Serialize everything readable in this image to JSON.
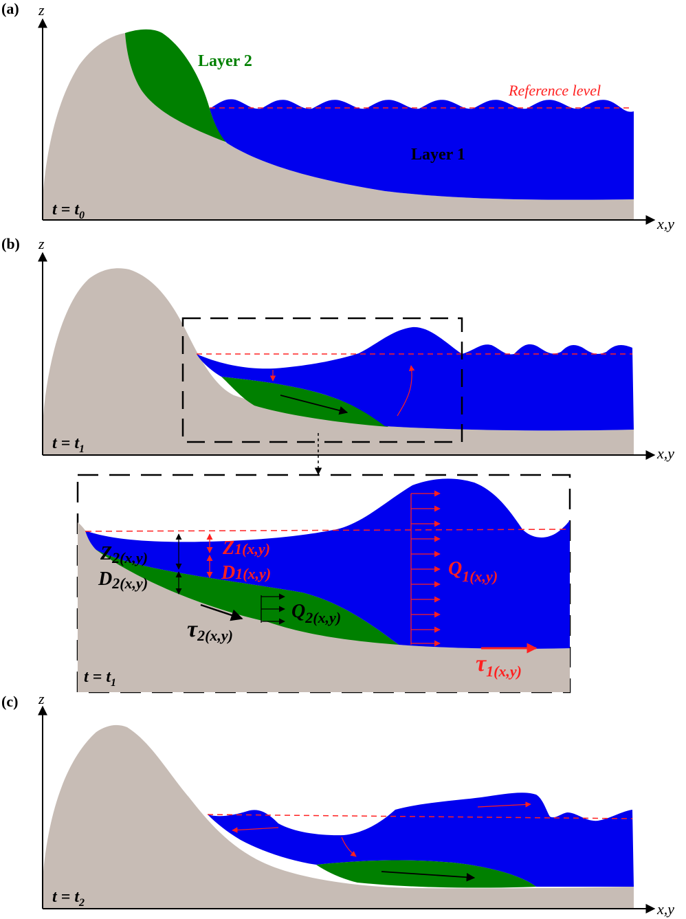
{
  "colors": {
    "ground": "#c7bcb5",
    "layer1": "#0000ee",
    "layer2": "#008000",
    "annotation_red": "#ff2020",
    "annotation_black": "#000000"
  },
  "axes": {
    "z_label": "z",
    "x_label": "x,y"
  },
  "panel_a": {
    "label": "(a)",
    "time_t": "t = t",
    "time_sub": "0",
    "layer2_label": "Layer 2",
    "layer1_label": "Layer 1",
    "reference_label": "Reference level"
  },
  "panel_b": {
    "label": "(b)",
    "time_t": "t = t",
    "time_sub": "1"
  },
  "panel_zoom": {
    "time_t": "t = t",
    "time_sub": "1",
    "Z2_main": "Z",
    "Z2_sub": "2(x,y)",
    "D2_main": "D",
    "D2_sub": "2(x,y)",
    "Z1_main": "Z",
    "Z1_sub": "1(x,y)",
    "D1_main": "D",
    "D1_sub": "1(x,y)",
    "Q1_main": "Q",
    "Q1_sub": "1(x,y)",
    "Q2_main": "Q",
    "Q2_sub": "2(x,y)",
    "tau2_main": "τ",
    "tau2_sub": "2(x,y)",
    "tau1_main": "τ",
    "tau1_sub": "1(x,y)"
  },
  "panel_c": {
    "label": "(c)",
    "time_t": "t = t",
    "time_sub": "2"
  }
}
